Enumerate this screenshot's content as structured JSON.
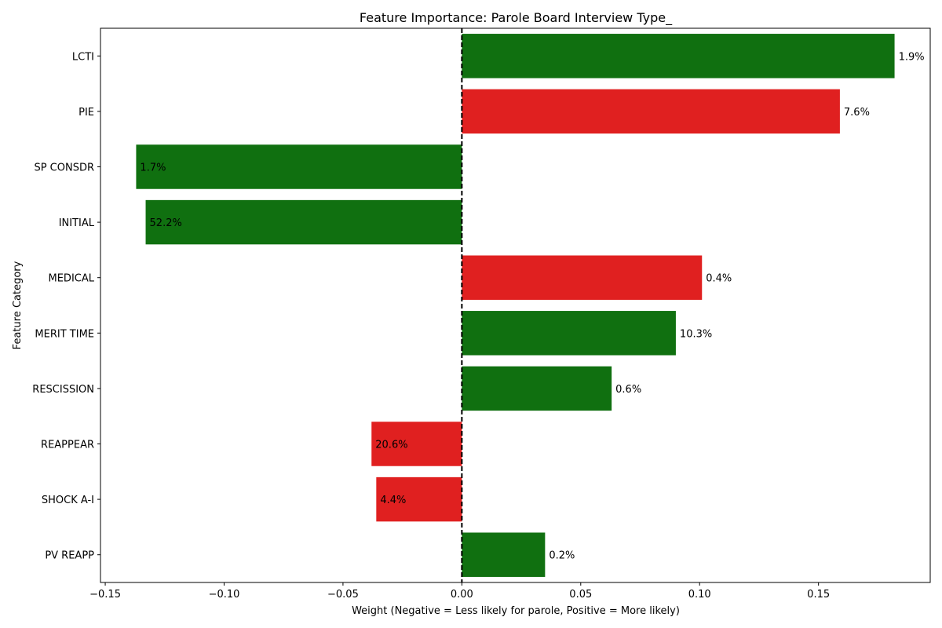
{
  "chart_data": {
    "type": "bar",
    "orientation": "horizontal",
    "title": "Feature Importance: Parole Board Interview Type_",
    "xlabel": "Weight (Negative = Less likely for parole, Positive = More likely)",
    "ylabel": "Feature Category",
    "xlim": [
      -0.152,
      0.197
    ],
    "xticks": [
      -0.15,
      -0.1,
      -0.05,
      0.0,
      0.05,
      0.1,
      0.15
    ],
    "xtick_labels": [
      "−0.15",
      "−0.10",
      "−0.05",
      "0.00",
      "0.05",
      "0.10",
      "0.15"
    ],
    "zero_line": "dashed",
    "grid": false,
    "colors": {
      "green": "#107010",
      "red": "#e02020"
    },
    "bars": [
      {
        "category": "LCTI",
        "value": 0.182,
        "label": "1.9%",
        "color": "green"
      },
      {
        "category": "PIE",
        "value": 0.159,
        "label": "7.6%",
        "color": "red"
      },
      {
        "category": "SP CONSDR",
        "value": -0.137,
        "label": "1.7%",
        "color": "green"
      },
      {
        "category": "INITIAL",
        "value": -0.133,
        "label": "52.2%",
        "color": "green"
      },
      {
        "category": "MEDICAL",
        "value": 0.101,
        "label": "0.4%",
        "color": "red"
      },
      {
        "category": "MERIT TIME",
        "value": 0.09,
        "label": "10.3%",
        "color": "green"
      },
      {
        "category": "RESCISSION",
        "value": 0.063,
        "label": "0.6%",
        "color": "green"
      },
      {
        "category": "REAPPEAR",
        "value": -0.038,
        "label": "20.6%",
        "color": "red"
      },
      {
        "category": "SHOCK A-I",
        "value": -0.036,
        "label": "4.4%",
        "color": "red"
      },
      {
        "category": "PV REAPP",
        "value": 0.035,
        "label": "0.2%",
        "color": "green"
      }
    ]
  }
}
